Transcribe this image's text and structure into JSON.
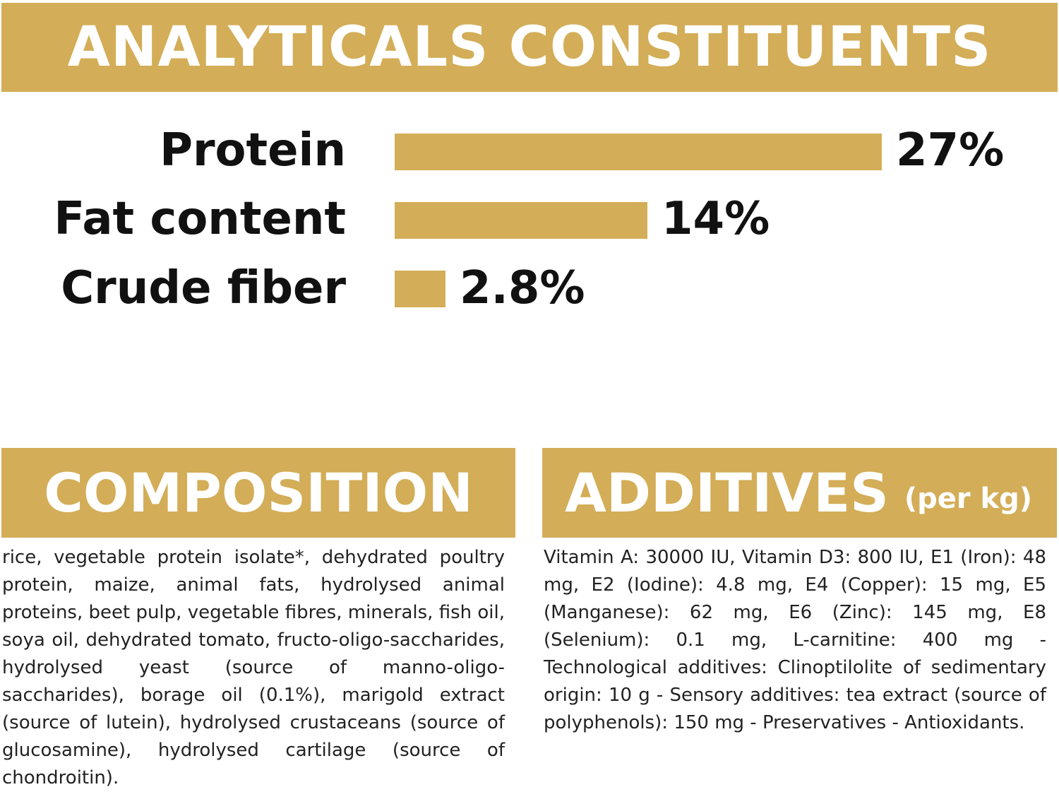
{
  "analyticals": {
    "title": "ANALYTICALS CONSTITUENTS",
    "items": [
      {
        "label": "Protein",
        "value": 27,
        "display": "27%"
      },
      {
        "label": "Fat content",
        "value": 14,
        "display": "14%"
      },
      {
        "label": "Crude fiber",
        "value": 2.8,
        "display": "2.8%"
      }
    ]
  },
  "composition": {
    "title": "COMPOSITION",
    "text": "rice, vegetable protein isolate*, dehydrated poultry protein, maize, animal fats, hydrolysed animal proteins, beet pulp, vegetable fibres, minerals, fish oil, soya oil, dehydrated tomato, fructo-oligo-saccharides, hydrolysed yeast (source of manno-oligo-saccharides), borage oil (0.1%), marigold extract (source of lutein), hydrolysed crustaceans (source of glucosamine), hydrolysed cartilage (source of chondroitin)."
  },
  "additives": {
    "title": "ADDITIVES",
    "unit": "(per kg)",
    "text": "Vitamin A: 30000 IU, Vitamin D3: 800 IU, E1 (Iron): 48 mg, E2 (Iodine): 4.8 mg, E4 (Copper): 15 mg, E5 (Manganese): 62 mg, E6 (Zinc): 145 mg, E8 (Selenium): 0.1 mg, L-carnitine: 400 mg - Technological additives: Clinoptilolite of sedimentary origin: 10 g - Sensory additives: tea extract (source of polyphenols): 150 mg - Preservatives - Antioxidants."
  },
  "colors": {
    "accent": "#d3ad57",
    "text": "#111111",
    "banner_text": "#ffffff"
  }
}
